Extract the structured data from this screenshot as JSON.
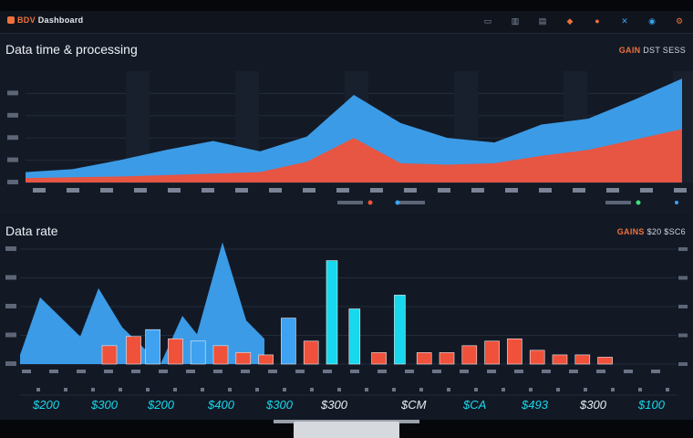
{
  "app": {
    "brand": "BDV",
    "title": "Dashboard"
  },
  "icons": [
    "layout-icon",
    "chart-icon",
    "document-icon",
    "bell-icon",
    "share-icon",
    "user-icon",
    "settings-icon"
  ],
  "panel_top": {
    "title": "Data time & processing",
    "meta_label": "GAIN",
    "meta_value": "DST SESS",
    "legend": [
      {
        "name": "processed",
        "color": "#f0513a"
      },
      {
        "name": "received",
        "color": "#3ea2f0"
      },
      {
        "name": "expected",
        "color": "#3ce07a"
      }
    ]
  },
  "panel_bottom": {
    "title": "Data rate",
    "meta_label": "GAINS",
    "meta_value": "$20 $SC6",
    "stats": [
      "$200",
      "$300",
      "$200",
      "$400",
      "$300",
      "$300",
      "$CM",
      "$CA",
      "$493",
      "$300",
      "$100"
    ]
  },
  "colors": {
    "blue": "#3ea2f0",
    "red": "#f0513a",
    "cyan": "#17d8ec",
    "bg": "#131a25"
  },
  "chart_data": [
    {
      "type": "area",
      "title": "Data time & processing",
      "x": [
        0,
        1,
        2,
        3,
        4,
        5,
        6,
        7,
        8,
        9,
        10,
        11,
        12,
        13,
        14
      ],
      "series": [
        {
          "name": "received",
          "color": "#3ea2f0",
          "values": [
            14,
            18,
            30,
            44,
            56,
            42,
            62,
            118,
            80,
            60,
            54,
            78,
            86,
            112,
            140
          ]
        },
        {
          "name": "processed",
          "color": "#f0513a",
          "values": [
            6,
            7,
            8,
            10,
            12,
            14,
            28,
            60,
            26,
            24,
            26,
            36,
            44,
            58,
            72
          ]
        }
      ],
      "ylim": [
        0,
        150
      ],
      "grid": true
    },
    {
      "type": "bar",
      "title": "Data rate",
      "area": {
        "name": "rate",
        "color": "#3ea2f0",
        "values": [
          0,
          58,
          36,
          12,
          66,
          8,
          28,
          58,
          20,
          112,
          34
        ]
      },
      "bars": [
        {
          "color": "#f0513a",
          "value": 16
        },
        {
          "color": "#f0513a",
          "value": 24
        },
        {
          "color": "#3ea2f0",
          "value": 30
        },
        {
          "color": "#f0513a",
          "value": 22
        },
        {
          "color": "#3ea2f0",
          "value": 20
        },
        {
          "color": "#f0513a",
          "value": 16
        },
        {
          "color": "#f0513a",
          "value": 10
        },
        {
          "color": "#f0513a",
          "value": 8
        },
        {
          "color": "#3ea2f0",
          "value": 40
        },
        {
          "color": "#f0513a",
          "value": 20
        },
        {
          "color": "#17d8ec",
          "value": 90
        },
        {
          "color": "#17d8ec",
          "value": 48
        },
        {
          "color": "#f0513a",
          "value": 10
        },
        {
          "color": "#17d8ec",
          "value": 60
        },
        {
          "color": "#f0513a",
          "value": 10
        },
        {
          "color": "#f0513a",
          "value": 10
        },
        {
          "color": "#f0513a",
          "value": 16
        },
        {
          "color": "#f0513a",
          "value": 20
        },
        {
          "color": "#f0513a",
          "value": 22
        },
        {
          "color": "#f0513a",
          "value": 12
        },
        {
          "color": "#f0513a",
          "value": 8
        },
        {
          "color": "#f0513a",
          "value": 8
        },
        {
          "color": "#f0513a",
          "value": 6
        }
      ],
      "ylim": [
        0,
        100
      ]
    }
  ]
}
